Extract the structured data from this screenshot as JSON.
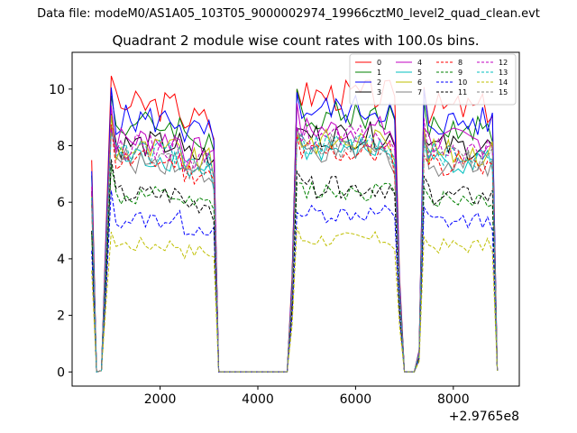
{
  "chart_data": {
    "type": "line",
    "suptitle": "Data file: modeM0/AS1A05_103T05_9000002974_19966cztM0_level2_quad_clean.evt",
    "title": "Quadrant 2 module wise count rates with 100.0s bins.",
    "xlabel": "",
    "ylabel": "",
    "x_offset_label": "+2.9765e8",
    "xlim": [
      200,
      9350
    ],
    "ylim": [
      -0.5,
      11.3
    ],
    "x_ticks": [
      2000,
      4000,
      6000,
      8000
    ],
    "x_tick_labels": [
      "2000",
      "4000",
      "6000",
      "8000"
    ],
    "y_ticks": [
      0,
      2,
      4,
      6,
      8,
      10
    ],
    "y_tick_labels": [
      "0",
      "2",
      "4",
      "6",
      "8",
      "10"
    ],
    "legend_position": "top-right",
    "legend_columns": 4,
    "series": [
      {
        "name": "0",
        "color": "#ff0000",
        "dash": "solid",
        "level": 9.6
      },
      {
        "name": "1",
        "color": "#008000",
        "dash": "solid",
        "level": 8.9
      },
      {
        "name": "2",
        "color": "#0000ff",
        "dash": "solid",
        "level": 9.1
      },
      {
        "name": "3",
        "color": "#000000",
        "dash": "solid",
        "level": 8.2
      },
      {
        "name": "4",
        "color": "#c000c0",
        "dash": "solid",
        "level": 8.4
      },
      {
        "name": "5",
        "color": "#00bfbf",
        "dash": "solid",
        "level": 7.7
      },
      {
        "name": "6",
        "color": "#bfbf00",
        "dash": "solid",
        "level": 8.0
      },
      {
        "name": "7",
        "color": "#808080",
        "dash": "solid",
        "level": 7.6
      },
      {
        "name": "8",
        "color": "#ff0000",
        "dash": "dashed",
        "level": 7.6
      },
      {
        "name": "9",
        "color": "#008000",
        "dash": "dashed",
        "level": 6.3
      },
      {
        "name": "10",
        "color": "#0000ff",
        "dash": "dashed",
        "level": 5.5
      },
      {
        "name": "11",
        "color": "#000000",
        "dash": "dashed",
        "level": 6.4
      },
      {
        "name": "12",
        "color": "#c000c0",
        "dash": "dashed",
        "level": 8.1
      },
      {
        "name": "13",
        "color": "#00bfbf",
        "dash": "dashed",
        "level": 7.9
      },
      {
        "name": "14",
        "color": "#bfbf00",
        "dash": "dashed",
        "level": 4.6
      },
      {
        "name": "15",
        "color": "#808080",
        "dash": "dashed",
        "level": 7.8
      }
    ],
    "time_profile": {
      "note": "Each module follows the same on/off profile: high plateau segments separated by gaps at ~0 counts.",
      "segments": [
        {
          "x_start": 600,
          "x_end": 3100,
          "state": "on"
        },
        {
          "x_start": 3150,
          "x_end": 4650,
          "state": "off"
        },
        {
          "x_start": 4750,
          "x_end": 6850,
          "state": "on"
        },
        {
          "x_start": 6950,
          "x_end": 7250,
          "state": "off"
        },
        {
          "x_start": 7350,
          "x_end": 8900,
          "state": "on"
        }
      ]
    }
  }
}
